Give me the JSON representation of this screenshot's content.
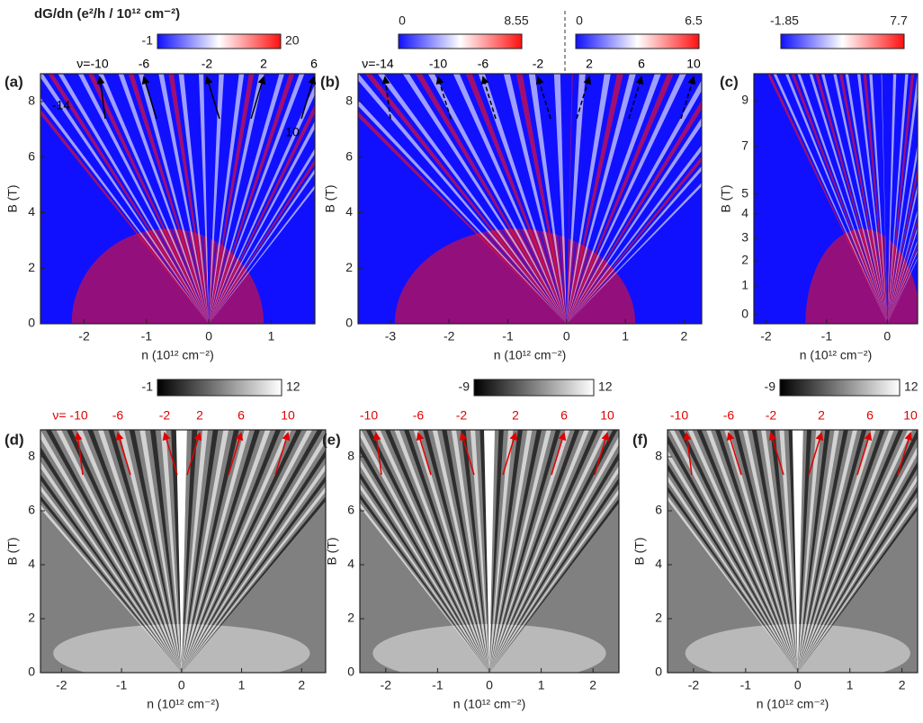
{
  "figure": {
    "colorbar_title": "dG/dn (e²/h / 10¹² cm⁻²)"
  },
  "chart_data": [
    {
      "type": "heatmap",
      "panel": "(a)",
      "xlabel": "n (10¹² cm⁻²)",
      "ylabel": "B (T)",
      "xlim": [
        -2.7,
        1.7
      ],
      "ylim": [
        0,
        9
      ],
      "xticks": [
        -2,
        -1,
        0,
        1
      ],
      "yticks": [
        0,
        2,
        4,
        6,
        8
      ],
      "colormap": [
        "#1010ff",
        "#ffffff",
        "#ff1010"
      ],
      "colorbars": [
        {
          "min": -1,
          "max": 20
        }
      ],
      "annotation_color": "#000000",
      "top_labels": [
        "ν=-10",
        "-6",
        "-2",
        "2",
        "6"
      ],
      "inner_labels": [
        "-14",
        "10"
      ]
    },
    {
      "type": "heatmap",
      "panel": "(b)",
      "xlabel": "n (10¹² cm⁻²)",
      "ylabel": "B (T)",
      "xlim": [
        -3.55,
        2.3
      ],
      "ylim": [
        0,
        9
      ],
      "xticks": [
        -3,
        -2,
        -1,
        0,
        1,
        2
      ],
      "yticks": [
        0,
        2,
        4,
        6,
        8
      ],
      "colormap": [
        "#1010ff",
        "#ffffff",
        "#ff1010"
      ],
      "colorbars": [
        {
          "min": 0,
          "max": 8.55
        },
        {
          "min": 0,
          "max": 6.5
        }
      ],
      "annotation_color": "#000000",
      "top_labels": [
        "ν=-14",
        "-10",
        "-6",
        "-2",
        "2",
        "6",
        "10"
      ]
    },
    {
      "type": "heatmap",
      "panel": "(c)",
      "xlabel": "n (10¹² cm⁻²)",
      "ylabel": "B (T)",
      "xlim": [
        -2.2,
        0.5
      ],
      "ylim": [
        0,
        9
      ],
      "xticks": [
        -2,
        -1,
        0
      ],
      "yticks": [
        0,
        1,
        2,
        3,
        4,
        5,
        7,
        9
      ],
      "colormap": [
        "#1010ff",
        "#ffffff",
        "#ff1010"
      ],
      "colorbars": [
        {
          "min": -1.85,
          "max": 7.7
        }
      ],
      "annotation_color": "#000000"
    },
    {
      "type": "heatmap",
      "panel": "(d)",
      "xlabel": "n (10¹² cm⁻²)",
      "ylabel": "B (T)",
      "xlim": [
        -2.35,
        2.4
      ],
      "ylim": [
        0,
        9
      ],
      "xticks": [
        -2,
        -1,
        0,
        1,
        2
      ],
      "yticks": [
        0,
        2,
        4,
        6,
        8
      ],
      "colormap": [
        "#000000",
        "#ffffff"
      ],
      "colorbars": [
        {
          "min": -1,
          "max": 12
        }
      ],
      "annotation_color": "#e00000",
      "top_labels": [
        "ν= -10",
        "-6",
        "-2",
        "2",
        "6",
        "10"
      ]
    },
    {
      "type": "heatmap",
      "panel": "(e)",
      "xlabel": "n (10¹² cm⁻²)",
      "ylabel": "B (T)",
      "xlim": [
        -2.5,
        2.5
      ],
      "ylim": [
        0,
        9
      ],
      "xticks": [
        -2,
        -1,
        0,
        1,
        2
      ],
      "yticks": [
        0,
        2,
        4,
        6,
        8
      ],
      "colormap": [
        "#000000",
        "#ffffff"
      ],
      "colorbars": [
        {
          "min": -9,
          "max": 12
        }
      ],
      "annotation_color": "#e00000",
      "top_labels": [
        "-10",
        "-6",
        "-2",
        "2",
        "6",
        "10"
      ]
    },
    {
      "type": "heatmap",
      "panel": "(f)",
      "xlabel": "n (10¹² cm⁻²)",
      "ylabel": "B (T)",
      "xlim": [
        -2.5,
        2.3
      ],
      "ylim": [
        0,
        9
      ],
      "xticks": [
        -2,
        -1,
        0,
        1,
        2
      ],
      "yticks": [
        0,
        2,
        4,
        6,
        8
      ],
      "colormap": [
        "#000000",
        "#ffffff"
      ],
      "colorbars": [
        {
          "min": -9,
          "max": 12
        }
      ],
      "annotation_color": "#e00000",
      "top_labels": [
        "-10",
        "-6",
        "-2",
        "2",
        "6",
        "10"
      ]
    }
  ]
}
